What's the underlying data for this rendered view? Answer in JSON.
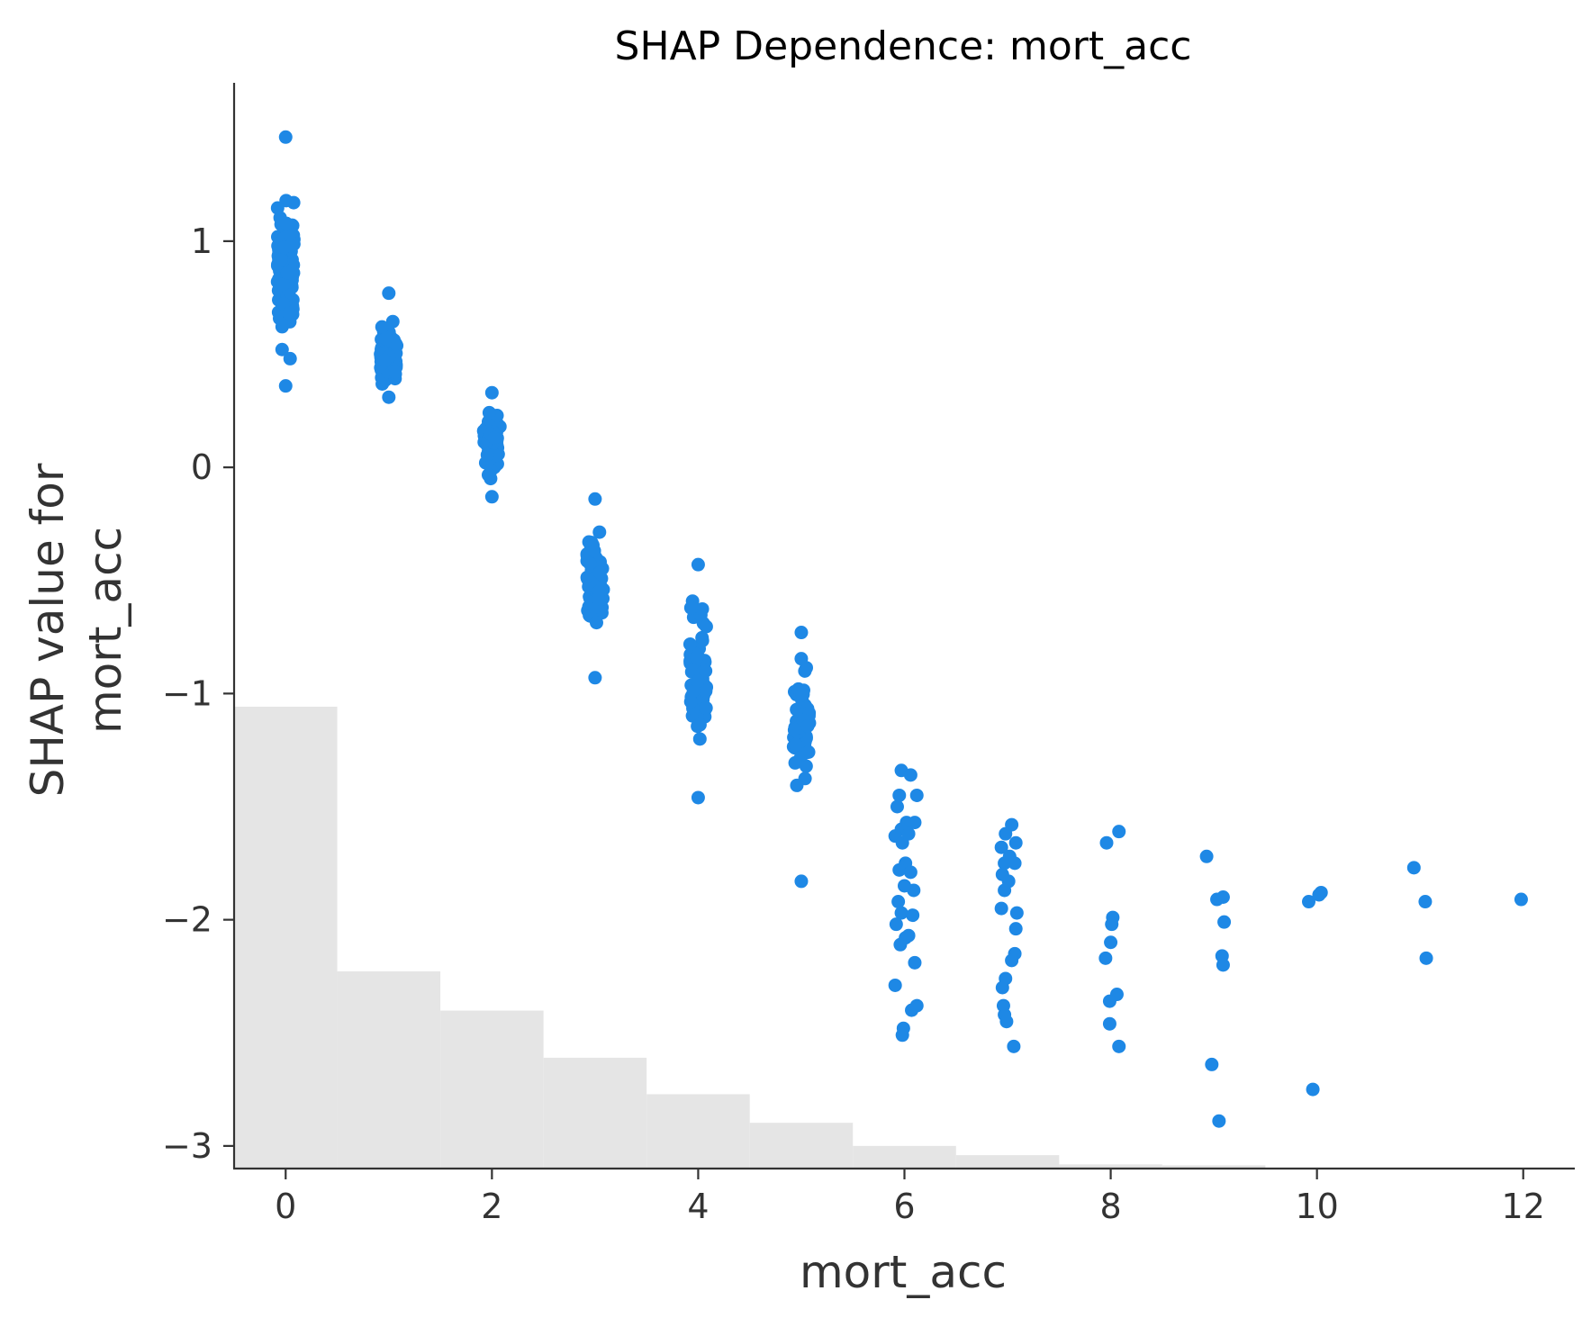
{
  "chart_data": {
    "type": "scatter",
    "title": "SHAP Dependence: mort_acc",
    "xlabel": "mort_acc",
    "ylabel_lines": [
      "SHAP value for",
      "mort_acc"
    ],
    "xlim": [
      -0.5,
      12.5
    ],
    "ylim": [
      -3.1,
      1.7
    ],
    "x_ticks": [
      0,
      2,
      4,
      6,
      8,
      10,
      12
    ],
    "y_ticks": [
      1,
      0,
      -1,
      -2,
      -3
    ],
    "y_tick_labels": [
      "1",
      "0",
      "−1",
      "−2",
      "−3"
    ],
    "grid": false,
    "legend": "none",
    "point_color": "#1e88e5",
    "histogram_color": "#e5e5e5",
    "histogram": {
      "bins": [
        [
          -0.5,
          0.5
        ],
        [
          0.5,
          1.5
        ],
        [
          1.5,
          2.5
        ],
        [
          2.5,
          3.5
        ],
        [
          3.5,
          4.5
        ],
        [
          4.5,
          5.5
        ],
        [
          5.5,
          6.5
        ],
        [
          6.5,
          7.5
        ],
        [
          7.5,
          8.5
        ],
        [
          8.5,
          9.5
        ]
      ],
      "relative_heights": [
        1.0,
        0.427,
        0.342,
        0.24,
        0.161,
        0.099,
        0.049,
        0.029,
        0.009,
        0.007
      ]
    },
    "clusters": [
      {
        "x": 0,
        "n": 140,
        "jitter": 0.08,
        "y_min": 0.36,
        "y_max": 1.46,
        "y_center": 0.85
      },
      {
        "x": 1,
        "n": 90,
        "jitter": 0.08,
        "y_min": 0.31,
        "y_max": 0.77,
        "y_center": 0.5
      },
      {
        "x": 2,
        "n": 70,
        "jitter": 0.08,
        "y_min": -0.13,
        "y_max": 0.33,
        "y_center": 0.12
      },
      {
        "x": 3,
        "n": 70,
        "jitter": 0.08,
        "y_min": -0.93,
        "y_max": -0.14,
        "y_center": -0.5
      },
      {
        "x": 4,
        "n": 60,
        "jitter": 0.08,
        "y_min": -1.46,
        "y_max": -0.43,
        "y_center": -0.9
      },
      {
        "x": 5,
        "n": 50,
        "jitter": 0.08,
        "y_min": -1.83,
        "y_max": -0.73,
        "y_center": -1.15
      }
    ],
    "points": [
      [
        5.97,
        -1.34
      ],
      [
        6.06,
        -1.36
      ],
      [
        6.12,
        -1.45
      ],
      [
        5.95,
        -1.45
      ],
      [
        5.93,
        -1.5
      ],
      [
        6.02,
        -1.57
      ],
      [
        5.97,
        -1.6
      ],
      [
        6.1,
        -1.57
      ],
      [
        5.91,
        -1.63
      ],
      [
        5.98,
        -1.66
      ],
      [
        6.04,
        -1.62
      ],
      [
        6.01,
        -1.75
      ],
      [
        5.95,
        -1.78
      ],
      [
        6.06,
        -1.79
      ],
      [
        6.09,
        -1.87
      ],
      [
        6.0,
        -1.85
      ],
      [
        5.94,
        -1.92
      ],
      [
        6.08,
        -1.98
      ],
      [
        5.97,
        -1.97
      ],
      [
        5.92,
        -2.02
      ],
      [
        6.01,
        -2.08
      ],
      [
        5.96,
        -2.11
      ],
      [
        6.04,
        -2.07
      ],
      [
        6.1,
        -2.19
      ],
      [
        5.91,
        -2.29
      ],
      [
        6.07,
        -2.4
      ],
      [
        6.12,
        -2.38
      ],
      [
        5.99,
        -2.48
      ],
      [
        5.98,
        -2.51
      ],
      [
        7.04,
        -1.58
      ],
      [
        6.98,
        -1.62
      ],
      [
        6.94,
        -1.68
      ],
      [
        7.08,
        -1.66
      ],
      [
        7.02,
        -1.72
      ],
      [
        6.97,
        -1.75
      ],
      [
        7.07,
        -1.75
      ],
      [
        6.95,
        -1.8
      ],
      [
        7.01,
        -1.83
      ],
      [
        6.97,
        -1.87
      ],
      [
        6.94,
        -1.95
      ],
      [
        7.09,
        -1.97
      ],
      [
        7.08,
        -2.04
      ],
      [
        7.07,
        -2.15
      ],
      [
        7.04,
        -2.18
      ],
      [
        6.98,
        -2.26
      ],
      [
        6.95,
        -2.3
      ],
      [
        6.96,
        -2.38
      ],
      [
        6.97,
        -2.42
      ],
      [
        6.99,
        -2.45
      ],
      [
        7.06,
        -2.56
      ],
      [
        7.96,
        -1.66
      ],
      [
        8.08,
        -1.61
      ],
      [
        8.02,
        -1.99
      ],
      [
        8.01,
        -2.02
      ],
      [
        8.0,
        -2.1
      ],
      [
        7.95,
        -2.17
      ],
      [
        8.06,
        -2.33
      ],
      [
        7.99,
        -2.36
      ],
      [
        7.99,
        -2.46
      ],
      [
        8.08,
        -2.56
      ],
      [
        8.93,
        -1.72
      ],
      [
        9.03,
        -1.91
      ],
      [
        9.09,
        -1.9
      ],
      [
        9.1,
        -2.01
      ],
      [
        9.08,
        -2.16
      ],
      [
        9.09,
        -2.2
      ],
      [
        8.98,
        -2.64
      ],
      [
        9.05,
        -2.89
      ],
      [
        9.92,
        -1.92
      ],
      [
        10.04,
        -1.88
      ],
      [
        10.02,
        -1.89
      ],
      [
        9.96,
        -2.75
      ],
      [
        10.94,
        -1.77
      ],
      [
        11.05,
        -1.92
      ],
      [
        11.06,
        -2.17
      ],
      [
        11.98,
        -1.91
      ]
    ]
  }
}
